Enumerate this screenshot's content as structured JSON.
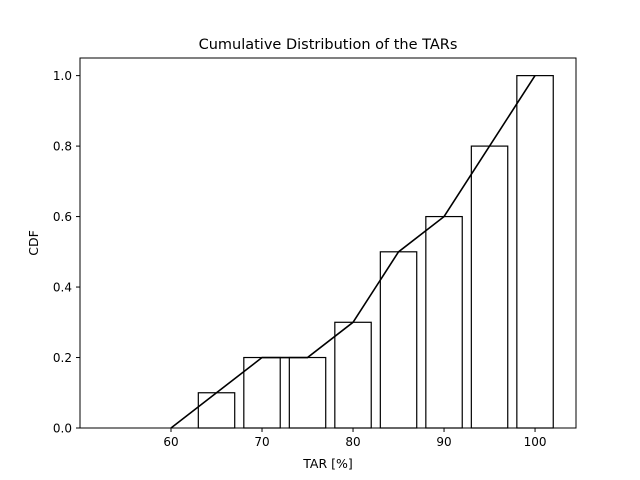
{
  "chart_data": {
    "type": "bar",
    "title": "Cumulative Distribution of the TARs",
    "xlabel": "TAR [%]",
    "ylabel": "CDF",
    "xlim": [
      50,
      104.5
    ],
    "ylim": [
      0,
      1.05
    ],
    "xticks": [
      60,
      70,
      80,
      90,
      100
    ],
    "yticks": [
      0.0,
      0.2,
      0.4,
      0.6,
      0.8,
      1.0
    ],
    "xtick_labels": [
      "60",
      "70",
      "80",
      "90",
      "100"
    ],
    "ytick_labels": [
      "0.0",
      "0.2",
      "0.4",
      "0.6",
      "0.8",
      "1.0"
    ],
    "grid": false,
    "legend": "none",
    "bars": [
      {
        "center": 57,
        "width": 4,
        "value": 0.0
      },
      {
        "center": 65,
        "width": 4,
        "value": 0.1
      },
      {
        "center": 70,
        "width": 4,
        "value": 0.2
      },
      {
        "center": 75,
        "width": 4,
        "value": 0.2
      },
      {
        "center": 80,
        "width": 4,
        "value": 0.3
      },
      {
        "center": 85,
        "width": 4,
        "value": 0.5
      },
      {
        "center": 90,
        "width": 4,
        "value": 0.6
      },
      {
        "center": 95,
        "width": 4,
        "value": 0.8
      },
      {
        "center": 100,
        "width": 4,
        "value": 1.0
      }
    ],
    "line": {
      "x": [
        60,
        65,
        70,
        75,
        80,
        85,
        90,
        95,
        100
      ],
      "y": [
        0.0,
        0.1,
        0.2,
        0.2,
        0.3,
        0.5,
        0.6,
        0.8,
        1.0
      ]
    },
    "colors": {
      "bar_fill": "#ffffff",
      "bar_edge": "#000000",
      "line": "#000000"
    }
  }
}
